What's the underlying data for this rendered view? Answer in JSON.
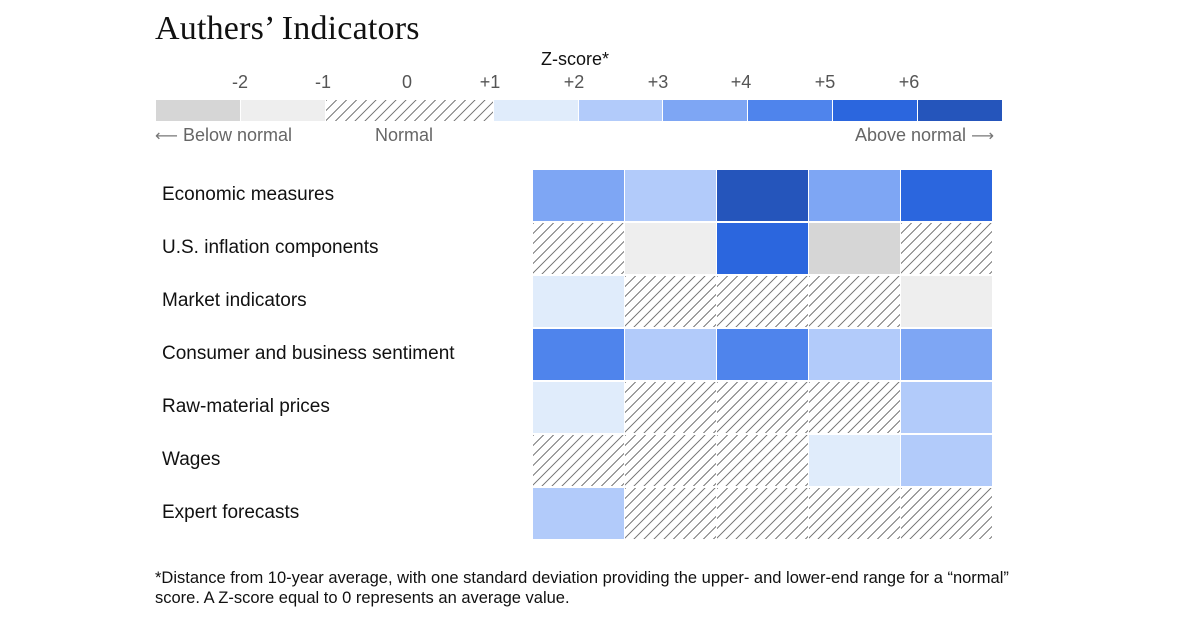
{
  "title": "Authers’ Indicators",
  "legend": {
    "title": "Z-score*",
    "ticks": [
      "-2",
      "-1",
      "0",
      "+1",
      "+2",
      "+3",
      "+4",
      "+5",
      "+6"
    ],
    "below_label": "Below normal",
    "normal_label": "Normal",
    "above_label": "Above normal",
    "scale_segments": [
      {
        "level": -3,
        "color": "#d6d6d6"
      },
      {
        "level": -2,
        "color": "#eeeeee"
      },
      {
        "level": 0,
        "color": "hatch"
      },
      {
        "level": 1,
        "color": "#e0ecfb"
      },
      {
        "level": 2,
        "color": "#b2cbfa"
      },
      {
        "level": 3,
        "color": "#7ea6f4"
      },
      {
        "level": 4,
        "color": "#4f84ec"
      },
      {
        "level": 5,
        "color": "#2b66de"
      },
      {
        "level": 6,
        "color": "#2555bb"
      }
    ]
  },
  "chart_data": {
    "type": "heatmap",
    "title": "Authers’ Indicators",
    "legend_title": "Z-score*",
    "rows": [
      "Economic measures",
      "U.S. inflation components",
      "Market indicators",
      "Consumer and business sentiment",
      "Raw-material prices",
      "Wages",
      "Expert forecasts"
    ],
    "columns": [],
    "values_note": "z-score band per cell; 0 = normal (hatched)",
    "values": [
      [
        3,
        2,
        6,
        3,
        5
      ],
      [
        0,
        -2,
        5,
        -3,
        0
      ],
      [
        1,
        0,
        0,
        0,
        -2
      ],
      [
        4,
        2,
        4,
        2,
        3
      ],
      [
        1,
        0,
        0,
        0,
        2
      ],
      [
        0,
        0,
        0,
        1,
        2
      ],
      [
        2,
        0,
        0,
        0,
        0
      ]
    ],
    "colors": {
      "-3": "#d6d6d6",
      "-2": "#eeeeee",
      "0": "hatch",
      "1": "#e0ecfb",
      "2": "#b2cbfa",
      "3": "#7ea6f4",
      "4": "#4f84ec",
      "5": "#2b66de",
      "6": "#2555bb"
    }
  },
  "footnote": "*Distance from 10-year average, with one standard deviation providing the upper- and lower-end range for a “normal” score. A Z-score equal to 0 represents an average value."
}
